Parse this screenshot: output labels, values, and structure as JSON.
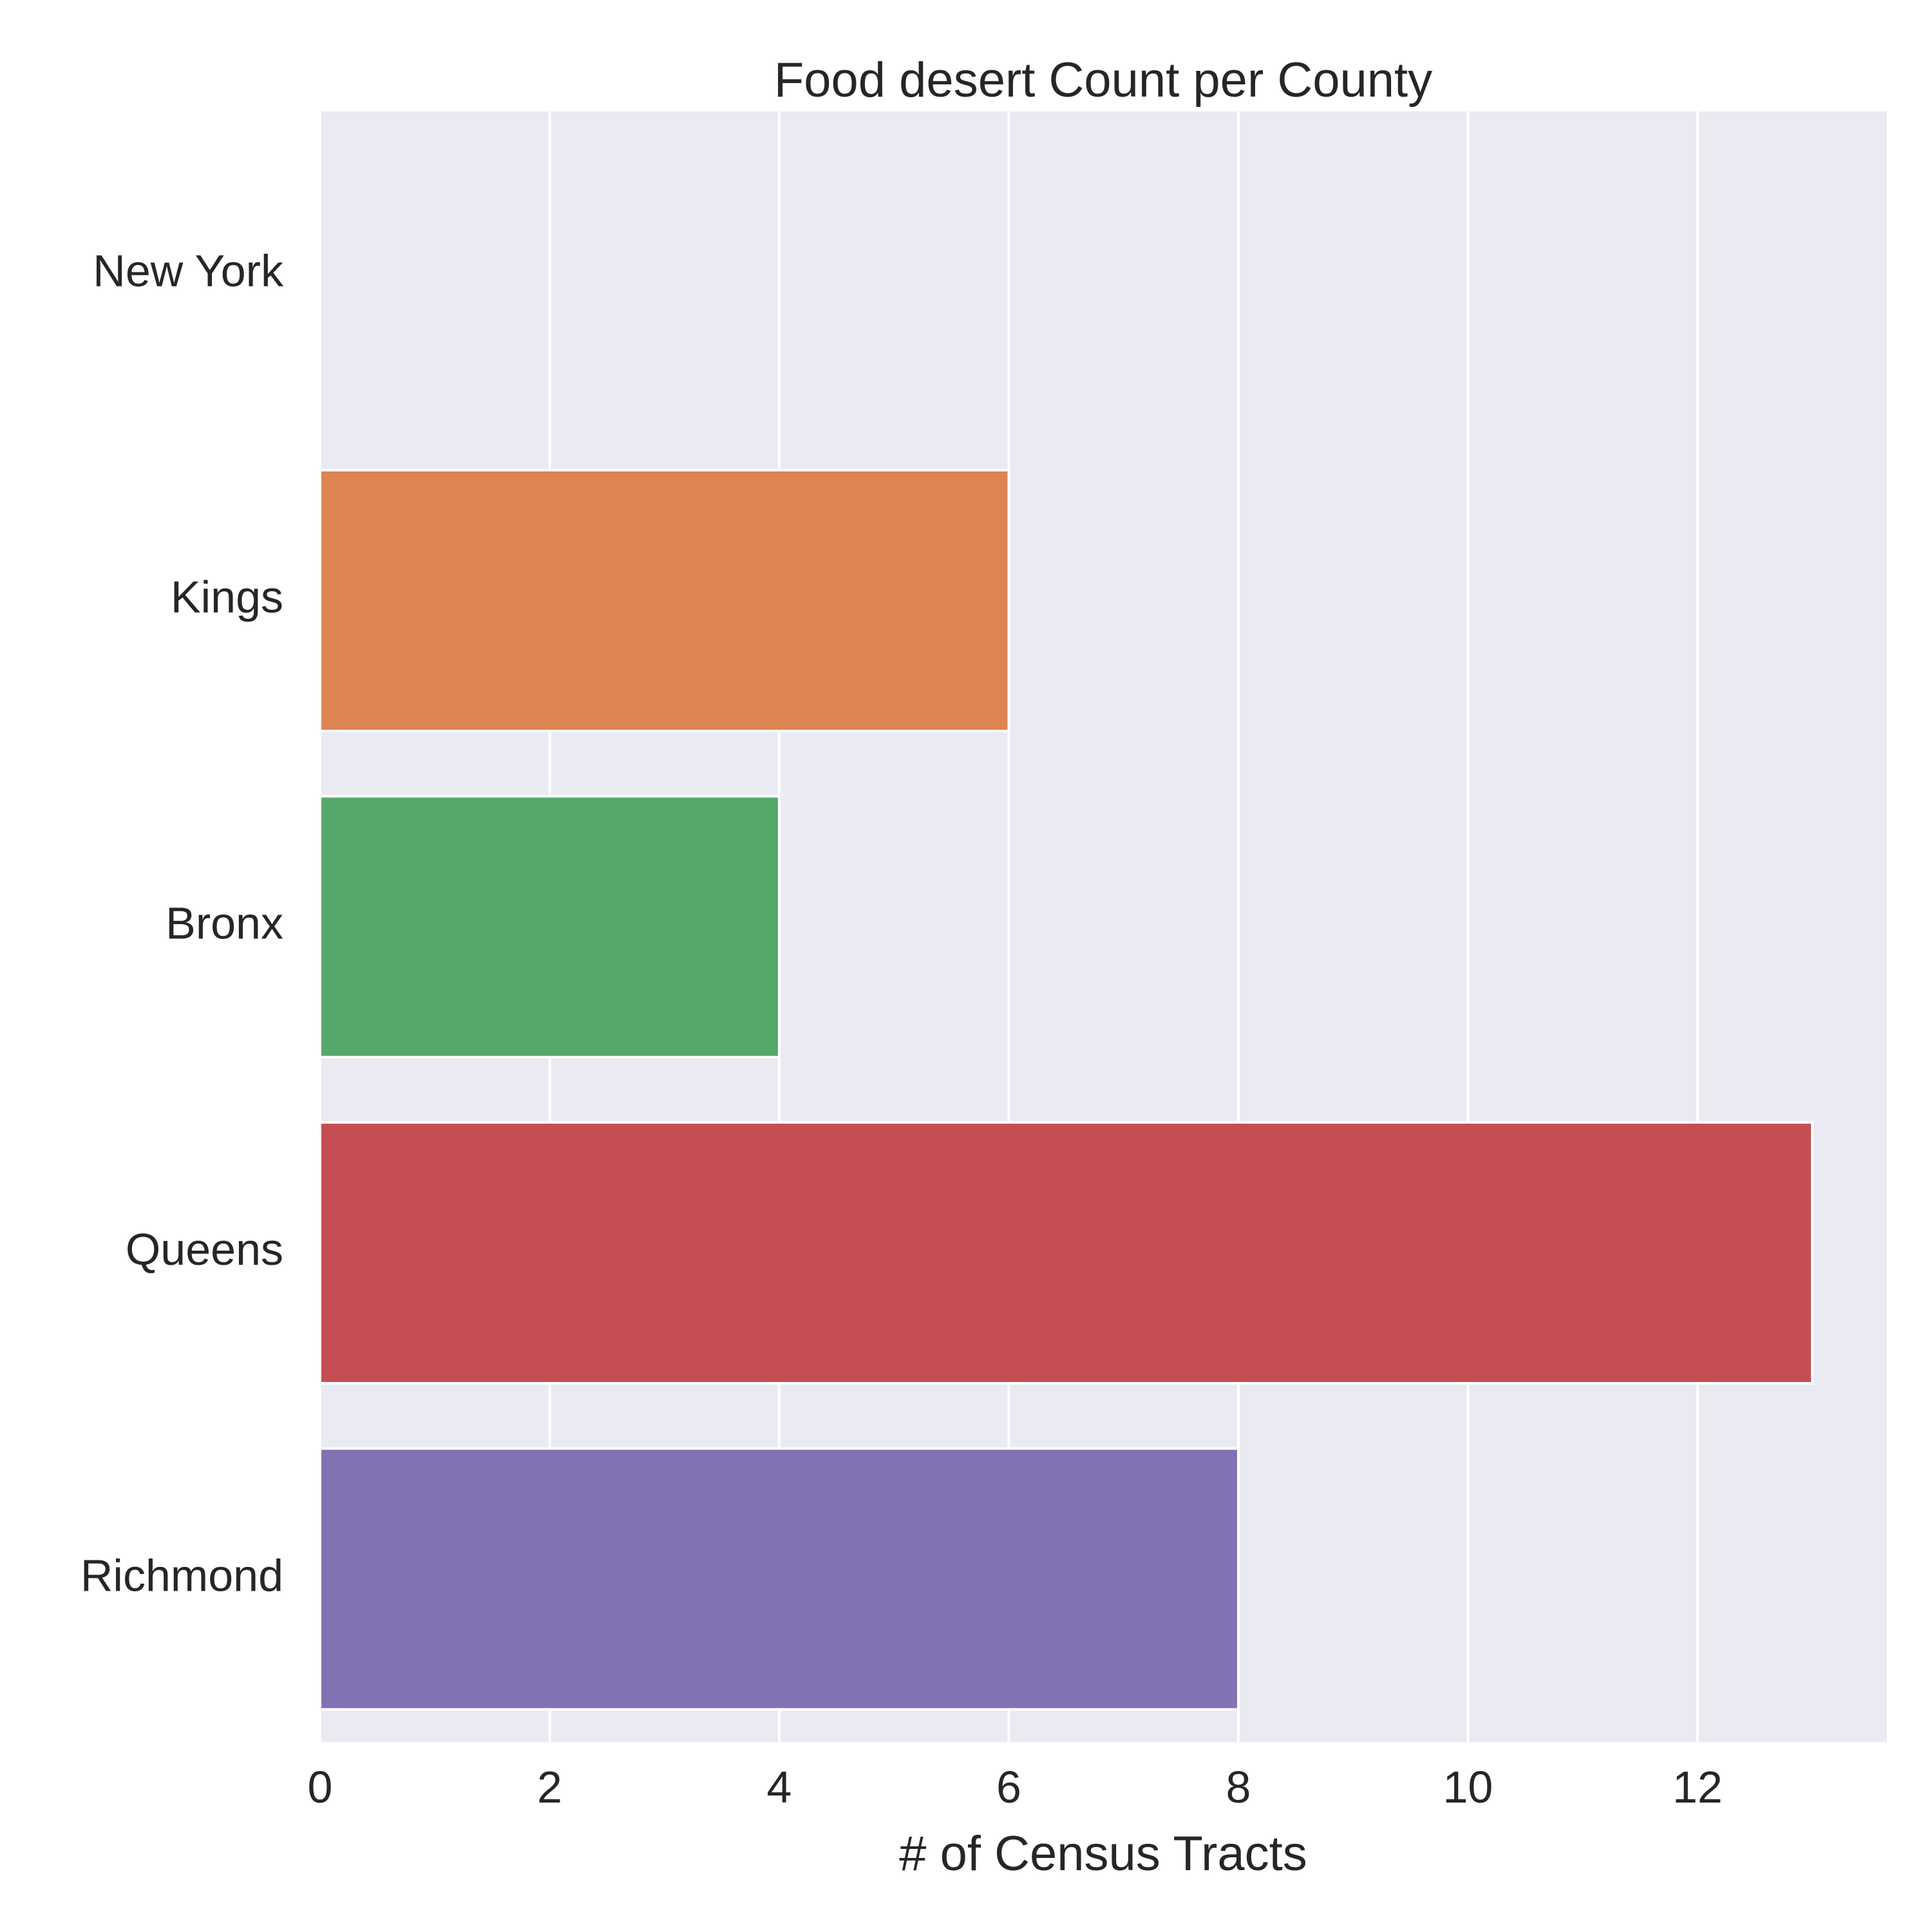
{
  "chart_data": {
    "type": "bar",
    "orientation": "horizontal",
    "title": "Food desert Count per County",
    "xlabel": "# of Census Tracts",
    "ylabel": "",
    "categories": [
      "New York",
      "Kings",
      "Bronx",
      "Queens",
      "Richmond"
    ],
    "values": [
      0,
      6,
      4,
      13,
      8
    ],
    "colors": [
      "#4c72b0",
      "#dd8452",
      "#55a868",
      "#c44e52",
      "#8172b3"
    ],
    "xlim": [
      0,
      13.65
    ],
    "xticks": [
      "0",
      "2",
      "4",
      "6",
      "8",
      "10",
      "12"
    ],
    "grid": true,
    "background": "#eaeaf2",
    "gridColor": "#ffffff"
  }
}
